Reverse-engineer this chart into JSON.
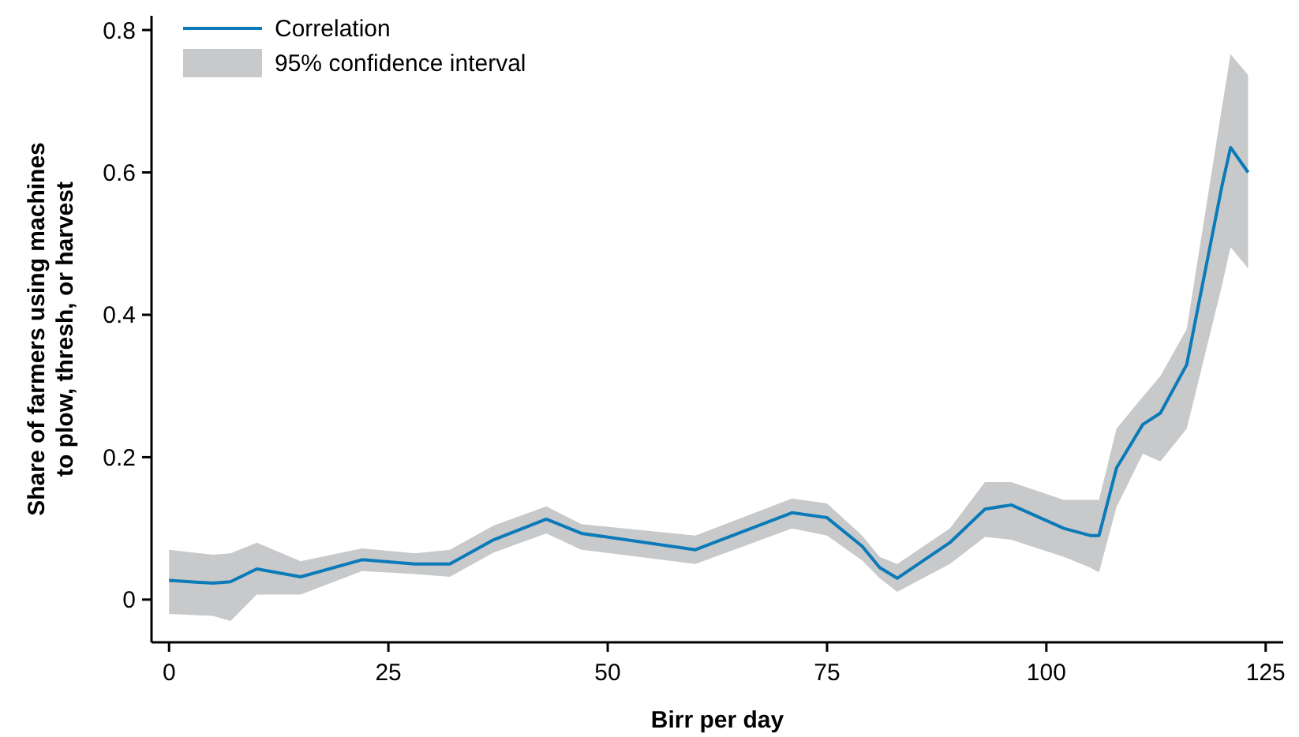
{
  "chart_data": {
    "type": "line",
    "xlabel": "Birr per day",
    "ylabel": "Share of farmers using machines\nto plow, thresh, or harvest",
    "x": [
      0,
      5,
      7,
      10,
      15,
      22,
      28,
      32,
      37,
      43,
      47,
      60,
      71,
      75,
      79,
      81,
      83,
      89,
      93,
      96,
      102,
      105,
      106,
      108,
      111,
      113,
      116,
      120,
      121,
      123
    ],
    "series": [
      {
        "name": "Correlation",
        "color": "#0a7ab8",
        "values": [
          0.027,
          0.023,
          0.025,
          0.043,
          0.032,
          0.056,
          0.05,
          0.05,
          0.084,
          0.113,
          0.093,
          0.07,
          0.122,
          0.115,
          0.075,
          0.045,
          0.03,
          0.08,
          0.127,
          0.133,
          0.1,
          0.09,
          0.09,
          0.185,
          0.246,
          0.262,
          0.33,
          0.58,
          0.635,
          0.6
        ],
        "lower": [
          -0.02,
          -0.023,
          -0.03,
          0.007,
          0.007,
          0.04,
          0.036,
          0.032,
          0.066,
          0.093,
          0.07,
          0.05,
          0.1,
          0.09,
          0.055,
          0.03,
          0.011,
          0.05,
          0.088,
          0.084,
          0.06,
          0.045,
          0.038,
          0.13,
          0.205,
          0.194,
          0.24,
          0.44,
          0.495,
          0.465
        ],
        "upper": [
          0.07,
          0.063,
          0.065,
          0.08,
          0.054,
          0.072,
          0.065,
          0.07,
          0.104,
          0.131,
          0.106,
          0.09,
          0.142,
          0.135,
          0.09,
          0.06,
          0.05,
          0.1,
          0.165,
          0.165,
          0.14,
          0.14,
          0.14,
          0.24,
          0.285,
          0.314,
          0.38,
          0.69,
          0.766,
          0.737
        ]
      }
    ],
    "annotations": [
      "95% confidence interval"
    ],
    "xlim": [
      -2,
      127
    ],
    "ylim": [
      -0.06,
      0.82
    ],
    "xticks": [
      0,
      25,
      50,
      75,
      100,
      125
    ],
    "yticks": [
      0,
      0.2,
      0.4,
      0.6,
      0.8
    ],
    "legend": "top left",
    "grid": false,
    "marker": "none",
    "line_style": "solid"
  }
}
